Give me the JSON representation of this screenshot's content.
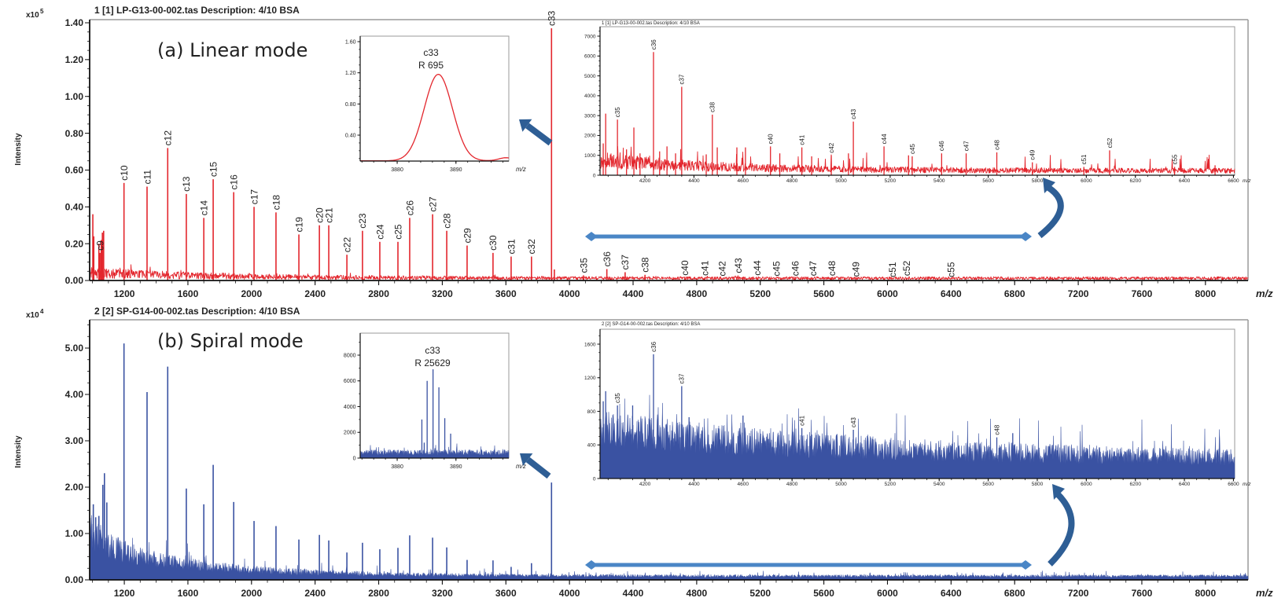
{
  "colors": {
    "linear_trace": "#e3262d",
    "spiral_trace": "#3a52a2",
    "zoom_arrow": "#2e5e95",
    "range_arrow": "#4a86c6"
  },
  "chart_data": [
    {
      "type": "line",
      "header": "1 [1] LP-G13-00-002.tas   Description: 4/10 BSA",
      "annotation": "(a) Linear mode",
      "ylabel": "Intensity",
      "y_multiplier": "x10",
      "y_exponent": "5",
      "xlabel": "m/z",
      "xlim": [
        982,
        8268
      ],
      "ylim": [
        0,
        1.4
      ],
      "xticks": [
        1200,
        1600,
        2000,
        2400,
        2800,
        3200,
        3600,
        4000,
        4400,
        4800,
        5200,
        5600,
        6000,
        6400,
        6800,
        7200,
        7600,
        8000
      ],
      "yticks": [
        "0.00",
        "0.20",
        "0.40",
        "0.60",
        "0.80",
        "1.00",
        "1.20",
        "1.40"
      ],
      "peaks": [
        {
          "mz": 1002,
          "intensity": 0.36
        },
        {
          "mz": 1008,
          "intensity": 0.24
        },
        {
          "mz": 1040,
          "intensity": 0.2
        },
        {
          "mz": 1055,
          "intensity": 0.22
        },
        {
          "mz": 1062,
          "intensity": 0.26
        },
        {
          "mz": 1070,
          "intensity": 0.27
        },
        {
          "label": "c9",
          "mz": 1047,
          "intensity": 0.15
        },
        {
          "label": "c10",
          "mz": 1198,
          "intensity": 0.53
        },
        {
          "label": "c11",
          "mz": 1343,
          "intensity": 0.51
        },
        {
          "label": "c12",
          "mz": 1473,
          "intensity": 0.72
        },
        {
          "label": "c13",
          "mz": 1590,
          "intensity": 0.47
        },
        {
          "label": "c14",
          "mz": 1700,
          "intensity": 0.34
        },
        {
          "label": "c15",
          "mz": 1759,
          "intensity": 0.55
        },
        {
          "label": "c16",
          "mz": 1888,
          "intensity": 0.48
        },
        {
          "label": "c17",
          "mz": 2016,
          "intensity": 0.4
        },
        {
          "label": "c18",
          "mz": 2154,
          "intensity": 0.37
        },
        {
          "label": "c19",
          "mz": 2298,
          "intensity": 0.25
        },
        {
          "label": "c20",
          "mz": 2427,
          "intensity": 0.3
        },
        {
          "label": "c21",
          "mz": 2486,
          "intensity": 0.3
        },
        {
          "label": "c22",
          "mz": 2600,
          "intensity": 0.14
        },
        {
          "label": "c23",
          "mz": 2698,
          "intensity": 0.27
        },
        {
          "label": "c24",
          "mz": 2807,
          "intensity": 0.21
        },
        {
          "label": "c25",
          "mz": 2921,
          "intensity": 0.21
        },
        {
          "label": "c26",
          "mz": 2995,
          "intensity": 0.34
        },
        {
          "label": "c27",
          "mz": 3139,
          "intensity": 0.36
        },
        {
          "label": "c28",
          "mz": 3228,
          "intensity": 0.27
        },
        {
          "label": "c29",
          "mz": 3356,
          "intensity": 0.19
        },
        {
          "label": "c30",
          "mz": 3519,
          "intensity": 0.15
        },
        {
          "label": "c31",
          "mz": 3633,
          "intensity": 0.13
        },
        {
          "label": "c32",
          "mz": 3761,
          "intensity": 0.13
        },
        {
          "label": "c33",
          "mz": 3887,
          "intensity": 1.37
        },
        {
          "mz": 3905,
          "intensity": 0.06
        },
        {
          "label": "c35",
          "mz": 4088,
          "intensity": 0.028
        },
        {
          "label": "c36",
          "mz": 4235,
          "intensity": 0.062
        },
        {
          "label": "c37",
          "mz": 4350,
          "intensity": 0.045
        },
        {
          "label": "c38",
          "mz": 4475,
          "intensity": 0.031
        },
        {
          "label": "c40",
          "mz": 4725,
          "intensity": 0.014
        },
        {
          "label": "c41",
          "mz": 4850,
          "intensity": 0.013
        },
        {
          "label": "c42",
          "mz": 4960,
          "intensity": 0.01
        },
        {
          "label": "c43",
          "mz": 5060,
          "intensity": 0.027
        },
        {
          "label": "c44",
          "mz": 5180,
          "intensity": 0.014
        },
        {
          "label": "c45",
          "mz": 5300,
          "intensity": 0.01
        },
        {
          "label": "c46",
          "mz": 5420,
          "intensity": 0.011
        },
        {
          "label": "c47",
          "mz": 5530,
          "intensity": 0.011
        },
        {
          "label": "c48",
          "mz": 5650,
          "intensity": 0.012
        },
        {
          "label": "c49",
          "mz": 5800,
          "intensity": 0.007
        },
        {
          "label": "c51",
          "mz": 6030,
          "intensity": 0.005
        },
        {
          "label": "c52",
          "mz": 6120,
          "intensity": 0.012
        },
        {
          "label": "c55",
          "mz": 6400,
          "intensity": 0.005
        }
      ]
    },
    {
      "type": "line",
      "peak_label": "c33",
      "resolution": "R 695",
      "xlabel": "m/z",
      "xlim": [
        3873.7,
        3899
      ],
      "ylim": [
        0.05,
        1.65
      ],
      "xticks": [
        3880,
        3890
      ],
      "yticks": [
        "0.40",
        "0.80",
        "1.20",
        "1.60"
      ],
      "peaks": [
        {
          "label": "c33",
          "mz": 3887,
          "intensity": 1.18
        }
      ]
    },
    {
      "type": "line",
      "header": "1 [1] LP-G13-00-002.tas   Description: 4/10 BSA",
      "xlabel": "m/z",
      "xlim": [
        4017,
        6605
      ],
      "ylim": [
        0,
        7400
      ],
      "xticks": [
        4200,
        4400,
        4600,
        4800,
        5000,
        5200,
        5400,
        5600,
        5800,
        6000,
        6200,
        6400,
        6600
      ],
      "yticks": [
        "0",
        "1000",
        "2000",
        "3000",
        "4000",
        "5000",
        "6000",
        "7000"
      ],
      "peaks": [
        {
          "mz": 4030,
          "intensity": 1600
        },
        {
          "mz": 4040,
          "intensity": 3100
        },
        {
          "mz": 4125,
          "intensity": 1300
        },
        {
          "mz": 4155,
          "intensity": 2400
        },
        {
          "mz": 4180,
          "intensity": 1100
        },
        {
          "mz": 4260,
          "intensity": 1200
        },
        {
          "mz": 4290,
          "intensity": 1450
        },
        {
          "mz": 4325,
          "intensity": 1100
        },
        {
          "mz": 4450,
          "intensity": 1050
        },
        {
          "mz": 4495,
          "intensity": 1400
        },
        {
          "mz": 4575,
          "intensity": 1400
        },
        {
          "mz": 4610,
          "intensity": 1400
        },
        {
          "mz": 4750,
          "intensity": 1100
        },
        {
          "mz": 4880,
          "intensity": 950
        },
        {
          "mz": 5030,
          "intensity": 1100
        },
        {
          "mz": 5275,
          "intensity": 1000
        },
        {
          "mz": 6525,
          "intensity": 500
        },
        {
          "label": "c35",
          "mz": 4088,
          "intensity": 2800
        },
        {
          "label": "c36",
          "mz": 4235,
          "intensity": 6200
        },
        {
          "label": "c37",
          "mz": 4350,
          "intensity": 4450
        },
        {
          "label": "c38",
          "mz": 4475,
          "intensity": 3050
        },
        {
          "label": "c40",
          "mz": 4712,
          "intensity": 1450
        },
        {
          "label": "c41",
          "mz": 4840,
          "intensity": 1400
        },
        {
          "label": "c42",
          "mz": 4960,
          "intensity": 1000
        },
        {
          "label": "c43",
          "mz": 5050,
          "intensity": 2700
        },
        {
          "label": "c44",
          "mz": 5175,
          "intensity": 1450
        },
        {
          "label": "c45",
          "mz": 5290,
          "intensity": 950
        },
        {
          "label": "c46",
          "mz": 5410,
          "intensity": 1100
        },
        {
          "label": "c47",
          "mz": 5510,
          "intensity": 1100
        },
        {
          "label": "c48",
          "mz": 5635,
          "intensity": 1150
        },
        {
          "label": "c49",
          "mz": 5780,
          "intensity": 650
        },
        {
          "label": "c51",
          "mz": 5990,
          "intensity": 420
        },
        {
          "label": "c52",
          "mz": 6095,
          "intensity": 1250
        },
        {
          "label": "c55",
          "mz": 6360,
          "intensity": 420
        }
      ]
    },
    {
      "type": "area",
      "header": "2 [2] SP-G14-00-002.tas   Description: 4/10 BSA",
      "annotation": "(b) Spiral mode",
      "ylabel": "Intensity",
      "y_multiplier": "x10",
      "y_exponent": "4",
      "xlabel": "m/z",
      "xlim": [
        982,
        8268
      ],
      "ylim": [
        0,
        5.6
      ],
      "xticks": [
        1200,
        1600,
        2000,
        2400,
        2800,
        3200,
        3600,
        4000,
        4400,
        4800,
        5200,
        5600,
        6000,
        6400,
        6800,
        7200,
        7600,
        8000
      ],
      "yticks": [
        "0.00",
        "1.00",
        "2.00",
        "3.00",
        "4.00",
        "5.00"
      ],
      "peaks": [
        {
          "mz": 1005,
          "intensity": 1.63
        },
        {
          "mz": 1020,
          "intensity": 1.35
        },
        {
          "mz": 1040,
          "intensity": 1.38
        },
        {
          "mz": 1065,
          "intensity": 2.05
        },
        {
          "mz": 1075,
          "intensity": 2.3
        },
        {
          "mz": 1090,
          "intensity": 1.67
        },
        {
          "mz": 1198,
          "intensity": 5.1
        },
        {
          "mz": 1343,
          "intensity": 4.05
        },
        {
          "mz": 1473,
          "intensity": 4.6
        },
        {
          "mz": 1590,
          "intensity": 1.97
        },
        {
          "mz": 1700,
          "intensity": 1.63
        },
        {
          "mz": 1759,
          "intensity": 2.48
        },
        {
          "mz": 1888,
          "intensity": 1.68
        },
        {
          "mz": 2016,
          "intensity": 1.27
        },
        {
          "mz": 2154,
          "intensity": 1.16
        },
        {
          "mz": 2298,
          "intensity": 0.87
        },
        {
          "mz": 2427,
          "intensity": 0.97
        },
        {
          "mz": 2486,
          "intensity": 0.85
        },
        {
          "mz": 2600,
          "intensity": 0.59
        },
        {
          "mz": 2698,
          "intensity": 0.8
        },
        {
          "mz": 2807,
          "intensity": 0.66
        },
        {
          "mz": 2921,
          "intensity": 0.69
        },
        {
          "mz": 2995,
          "intensity": 0.96
        },
        {
          "mz": 3139,
          "intensity": 0.91
        },
        {
          "mz": 3228,
          "intensity": 0.7
        },
        {
          "mz": 3356,
          "intensity": 0.43
        },
        {
          "mz": 3519,
          "intensity": 0.42
        },
        {
          "mz": 3633,
          "intensity": 0.28
        },
        {
          "mz": 3761,
          "intensity": 0.36
        },
        {
          "mz": 3887,
          "intensity": 2.1
        }
      ]
    },
    {
      "type": "area",
      "peak_label": "c33",
      "resolution": "R 25629",
      "xlabel": "m/z",
      "xlim": [
        3873.7,
        3899
      ],
      "ylim": [
        0,
        9700
      ],
      "xticks": [
        3880,
        3890
      ],
      "yticks": [
        "0",
        "2000",
        "4000",
        "6000",
        "8000"
      ],
      "peaks": [
        {
          "mz": 3884.2,
          "intensity": 3000
        },
        {
          "mz": 3884.6,
          "intensity": 1200
        },
        {
          "mz": 3885.1,
          "intensity": 6000
        },
        {
          "mz": 3886.1,
          "intensity": 6900
        },
        {
          "mz": 3887.1,
          "intensity": 5500
        },
        {
          "mz": 3888.1,
          "intensity": 3100
        },
        {
          "mz": 3889.1,
          "intensity": 1900
        }
      ]
    },
    {
      "type": "area",
      "header": "2 [2] SP-G14-00-002.tas   Description: 4/10 BSA",
      "xlabel": "m/z",
      "xlim": [
        4017,
        6605
      ],
      "ylim": [
        0,
        1777
      ],
      "xticks": [
        4200,
        4400,
        4600,
        4800,
        5000,
        5200,
        5400,
        5600,
        5800,
        6000,
        6200,
        6400,
        6600
      ],
      "yticks": [
        "0",
        "400",
        "800",
        "1200",
        "1600"
      ],
      "peaks": [
        {
          "mz": 4030,
          "intensity": 920
        },
        {
          "mz": 4040,
          "intensity": 1040
        },
        {
          "mz": 4150,
          "intensity": 870
        },
        {
          "mz": 4380,
          "intensity": 730
        },
        {
          "mz": 4600,
          "intensity": 750
        },
        {
          "mz": 5700,
          "intensity": 540
        },
        {
          "label": "c35",
          "mz": 4088,
          "intensity": 870
        },
        {
          "label": "c36",
          "mz": 4235,
          "intensity": 1480
        },
        {
          "label": "c37",
          "mz": 4350,
          "intensity": 1100
        },
        {
          "label": "c41",
          "mz": 4840,
          "intensity": 600
        },
        {
          "label": "c43",
          "mz": 5050,
          "intensity": 580
        },
        {
          "label": "c48",
          "mz": 5635,
          "intensity": 490
        }
      ]
    }
  ]
}
